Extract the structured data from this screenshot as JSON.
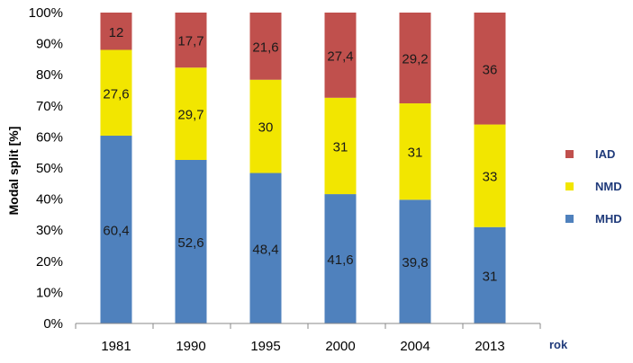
{
  "chart_data": {
    "type": "bar",
    "stacked": true,
    "categories": [
      "1981",
      "1990",
      "1995",
      "2000",
      "2004",
      "2013"
    ],
    "series": [
      {
        "name": "MHD",
        "values": [
          60.4,
          52.6,
          48.4,
          41.6,
          39.8,
          31
        ],
        "labels": [
          "60,4",
          "52,6",
          "48,4",
          "41,6",
          "39,8",
          "31"
        ],
        "color": "#4f81bd"
      },
      {
        "name": "NMD",
        "values": [
          27.6,
          29.7,
          30,
          31,
          31,
          33
        ],
        "labels": [
          "27,6",
          "29,7",
          "30",
          "31",
          "31",
          "33"
        ],
        "color": "#f2e600"
      },
      {
        "name": "IAD",
        "values": [
          12,
          17.7,
          21.6,
          27.4,
          29.2,
          36
        ],
        "labels": [
          "12",
          "17,7",
          "21,6",
          "27,4",
          "29,2",
          "36"
        ],
        "color": "#c0504d"
      }
    ],
    "ylabel": "Modal split [%]",
    "xlabel": "rok",
    "ylim": [
      0,
      100
    ],
    "yticks": [
      "0%",
      "10%",
      "20%",
      "30%",
      "40%",
      "50%",
      "60%",
      "70%",
      "80%",
      "90%",
      "100%"
    ],
    "legend_order": [
      "IAD",
      "NMD",
      "MHD"
    ],
    "legend_position": "right",
    "grid": false
  }
}
